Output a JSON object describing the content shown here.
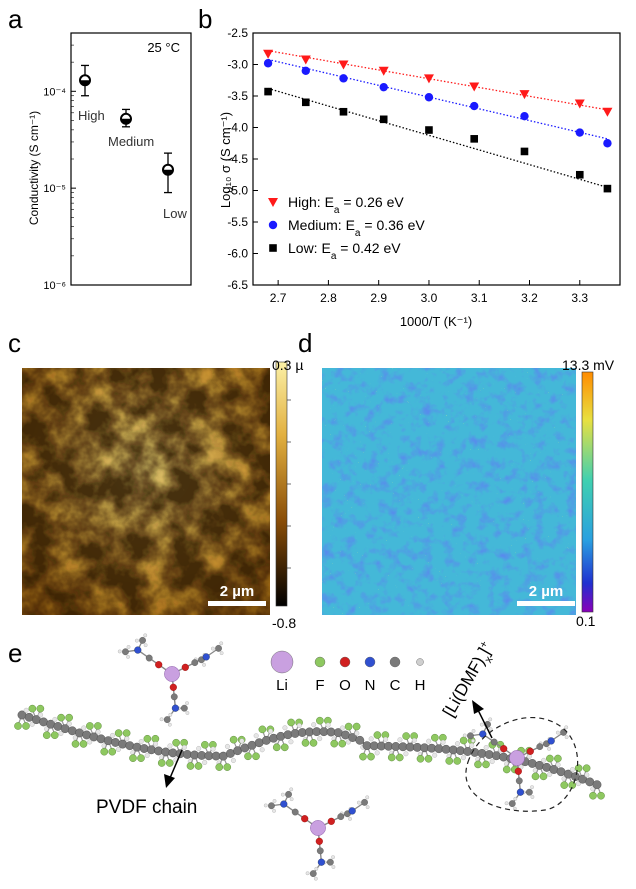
{
  "panels": {
    "a": {
      "letter": "a",
      "temp_label": "25 °C",
      "y_label": "Conductivity (S cm⁻¹)",
      "y_ticks": [
        "10⁻⁴",
        "10⁻⁵",
        "10⁻⁶"
      ]
    },
    "b": {
      "letter": "b",
      "x_label": "1000/T (K⁻¹)",
      "y_label": "Log₁₀ σ (S cm⁻¹)"
    },
    "c": {
      "letter": "c",
      "scale_max": "0.3 µ",
      "scale_min": "-0.8",
      "scale_bar": "2 µm"
    },
    "d": {
      "letter": "d",
      "scale_max": "13.3 mV",
      "scale_min": "0.1",
      "scale_bar": "2 µm"
    },
    "e": {
      "letter": "e",
      "legend_labels": [
        "Li",
        "F",
        "O",
        "N",
        "C",
        "H"
      ],
      "complex_label": "[Li(DMF)x]+",
      "chain_label": "PVDF chain"
    }
  },
  "chart_data": [
    {
      "type": "scatter",
      "categories": [
        "High",
        "Medium",
        "Low"
      ],
      "values": [
        0.00013,
        5.2e-05,
        1.55e-05
      ],
      "error_low": [
        9e-05,
        4.3e-05,
        9e-06
      ],
      "error_high": [
        0.000185,
        6.5e-05,
        2.3e-05
      ],
      "ylabel": "Conductivity (S cm⁻¹)",
      "yscale": "log",
      "ylim": [
        1e-06,
        0.0004
      ],
      "y_ticks": [
        0.0001,
        1e-05,
        1e-06
      ]
    },
    {
      "type": "scatter",
      "xlabel": "1000/T (K⁻¹)",
      "ylabel": "Log₁₀ σ (S cm⁻¹)",
      "xlim": [
        2.65,
        3.38
      ],
      "ylim": [
        -6.5,
        -2.5
      ],
      "x_ticks": [
        "2.7",
        "2.8",
        "2.9",
        "3.0",
        "3.1",
        "3.2",
        "3.3"
      ],
      "y_ticks": [
        "-2.5",
        "-3.0",
        "-3.5",
        "-4.0",
        "-4.5",
        "-5.0",
        "-5.5",
        "-6.0",
        "-6.5"
      ],
      "legend_position": "bottom-left",
      "series": [
        {
          "name": "High: Ea = 0.26 eV",
          "legend_main": "High: E",
          "legend_sub": "a",
          "legend_rest": " = 0.26 eV",
          "color": "#ff1a1a",
          "marker": "triangle-down",
          "x": [
            2.68,
            2.755,
            2.83,
            2.91,
            3.0,
            3.09,
            3.19,
            3.3,
            3.355
          ],
          "y": [
            -2.83,
            -2.92,
            -3.0,
            -3.1,
            -3.22,
            -3.35,
            -3.47,
            -3.62,
            -3.75
          ],
          "fit": [
            [
              2.68,
              -2.78
            ],
            [
              3.355,
              -3.72
            ]
          ]
        },
        {
          "name": "Medium: Ea = 0.36 eV",
          "legend_main": "Medium: E",
          "legend_sub": "a",
          "legend_rest": " = 0.36 eV",
          "color": "#1a1aff",
          "marker": "circle",
          "x": [
            2.68,
            2.755,
            2.83,
            2.91,
            3.0,
            3.09,
            3.19,
            3.3,
            3.355
          ],
          "y": [
            -2.98,
            -3.1,
            -3.22,
            -3.36,
            -3.52,
            -3.66,
            -3.82,
            -4.08,
            -4.25
          ],
          "fit": [
            [
              2.68,
              -2.92
            ],
            [
              3.355,
              -4.18
            ]
          ]
        },
        {
          "name": "Low: Ea = 0.42 eV",
          "legend_main": "Low: E",
          "legend_sub": "a",
          "legend_rest": " = 0.42 eV",
          "color": "#000000",
          "marker": "square",
          "x": [
            2.68,
            2.755,
            2.83,
            2.91,
            3.0,
            3.09,
            3.19,
            3.3,
            3.355
          ],
          "y": [
            -3.43,
            -3.6,
            -3.75,
            -3.87,
            -4.04,
            -4.18,
            -4.38,
            -4.75,
            -4.97
          ],
          "fit": [
            [
              2.68,
              -3.38
            ],
            [
              3.355,
              -4.95
            ]
          ]
        }
      ]
    }
  ],
  "colors": {
    "afm_dark": "#2a1400",
    "afm_mid": "#c88a1e",
    "afm_light": "#f4dc70",
    "kpfm_low": "#6a00b0",
    "kpfm_mid": "#3fb8d8",
    "kpfm_high": "#ffa000",
    "li": "#c9a0e0",
    "f": "#8ec860",
    "o": "#d02020",
    "n": "#3050d0",
    "c": "#7a7a7a",
    "h": "#e6e6e6"
  }
}
